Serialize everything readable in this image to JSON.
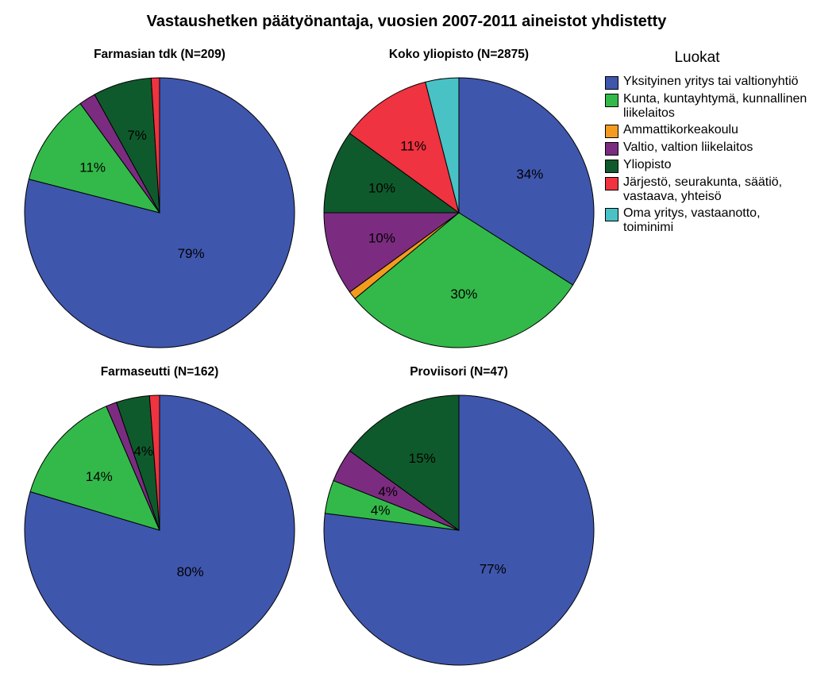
{
  "title": "Vastaushetken päätyönantaja, vuosien 2007-2011 aineistot yhdistetty",
  "legend": {
    "title": "Luokat",
    "items": [
      {
        "label": "Yksityinen yritys tai valtionyhtiö",
        "color": "#3f56ad"
      },
      {
        "label": "Kunta, kuntayhtymä, kunnallinen liikelaitos",
        "color": "#33b94a"
      },
      {
        "label": "Ammattikorkeakoulu",
        "color": "#f39b1f"
      },
      {
        "label": "Valtio, valtion liikelaitos",
        "color": "#7b2c80"
      },
      {
        "label": "Yliopisto",
        "color": "#0f5a2c"
      },
      {
        "label": "Järjestö, seurakunta, säätiö, vastaava, yhteisö",
        "color": "#ef3340"
      },
      {
        "label": "Oma yritys, vastaanotto, toiminimi",
        "color": "#48c2c5"
      }
    ]
  },
  "chart_data": [
    {
      "type": "pie",
      "title": "Farmasian tdk (N=209)",
      "categories": [
        "Yksityinen yritys tai valtionyhtiö",
        "Kunta, kuntayhtymä, kunnallinen liikelaitos",
        "Ammattikorkeakoulu",
        "Valtio, valtion liikelaitos",
        "Yliopisto",
        "Järjestö, seurakunta, säätiö, vastaava, yhteisö",
        "Oma yritys, vastaanotto, toiminimi"
      ],
      "values": [
        79,
        11,
        0,
        2,
        7,
        1,
        0
      ],
      "labels": [
        "79%",
        "11%",
        "",
        "",
        "7%",
        "",
        ""
      ]
    },
    {
      "type": "pie",
      "title": "Koko yliopisto (N=2875)",
      "categories": [
        "Yksityinen yritys tai valtionyhtiö",
        "Kunta, kuntayhtymä, kunnallinen liikelaitos",
        "Ammattikorkeakoulu",
        "Valtio, valtion liikelaitos",
        "Yliopisto",
        "Järjestö, seurakunta, säätiö, vastaava, yhteisö",
        "Oma yritys, vastaanotto, toiminimi"
      ],
      "values": [
        34,
        30,
        1,
        10,
        10,
        11,
        4
      ],
      "labels": [
        "34%",
        "30%",
        "",
        "10%",
        "10%",
        "11%",
        ""
      ]
    },
    {
      "type": "pie",
      "title": "Farmaseutti (N=162)",
      "categories": [
        "Yksityinen yritys tai valtionyhtiö",
        "Kunta, kuntayhtymä, kunnallinen liikelaitos",
        "Ammattikorkeakoulu",
        "Valtio, valtion liikelaitos",
        "Yliopisto",
        "Järjestö, seurakunta, säätiö, vastaava, yhteisö",
        "Oma yritys, vastaanotto, toiminimi"
      ],
      "values": [
        80,
        14,
        0,
        1.3,
        4,
        1.2,
        0
      ],
      "labels": [
        "80%",
        "14%",
        "",
        "",
        "4%",
        "",
        ""
      ]
    },
    {
      "type": "pie",
      "title": "Proviisori (N=47)",
      "categories": [
        "Yksityinen yritys tai valtionyhtiö",
        "Kunta, kuntayhtymä, kunnallinen liikelaitos",
        "Ammattikorkeakoulu",
        "Valtio, valtion liikelaitos",
        "Yliopisto",
        "Järjestö, seurakunta, säätiö, vastaava, yhteisö",
        "Oma yritys, vastaanotto, toiminimi"
      ],
      "values": [
        77,
        4,
        0,
        4,
        15,
        0,
        0
      ],
      "labels": [
        "77%",
        "4%",
        "",
        "4%",
        "15%",
        "",
        ""
      ]
    }
  ]
}
